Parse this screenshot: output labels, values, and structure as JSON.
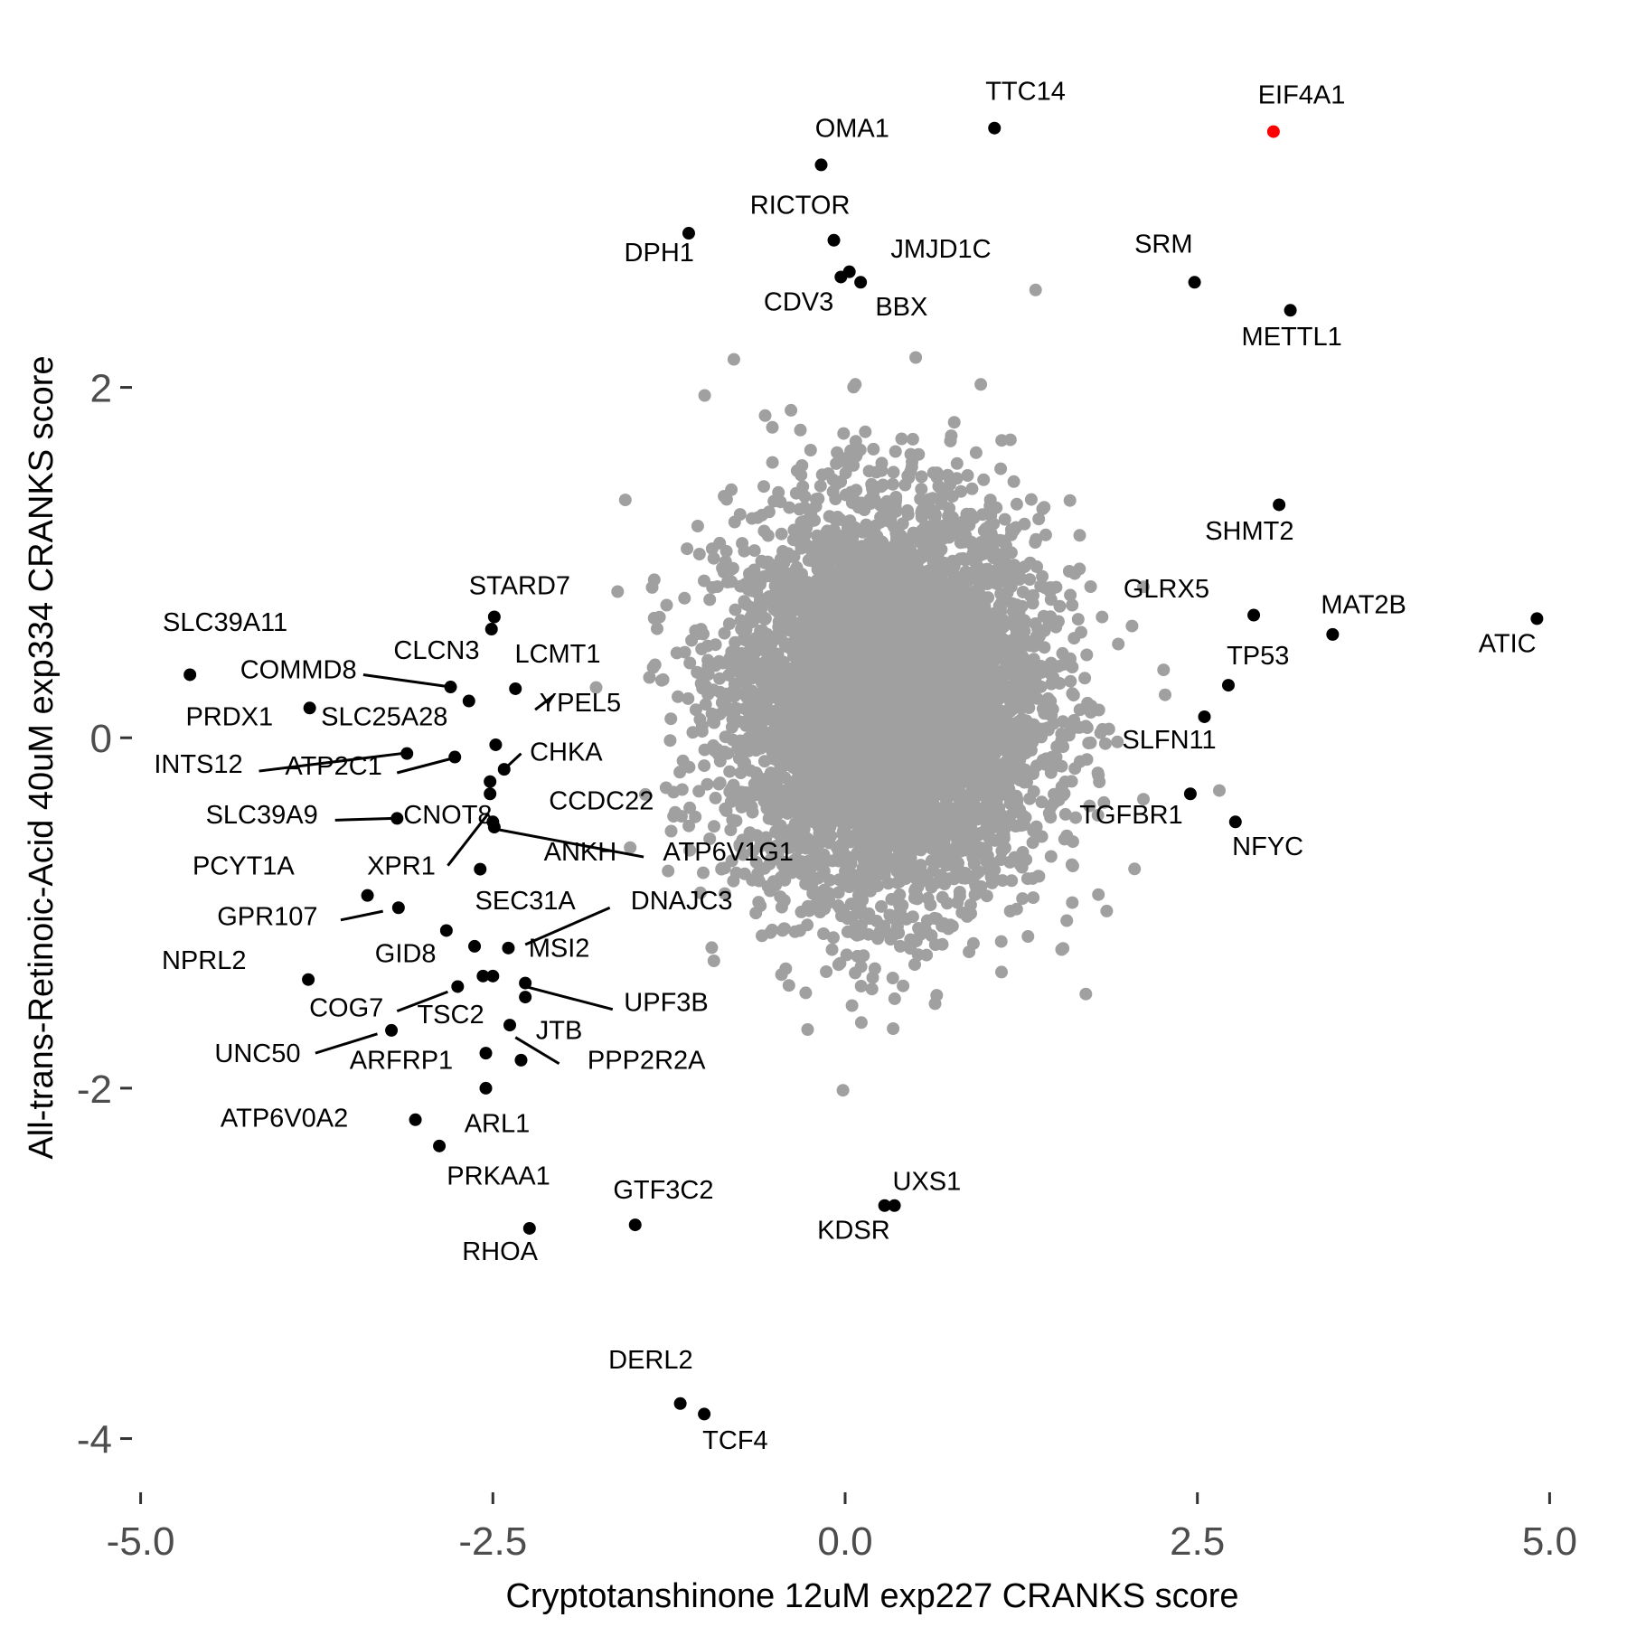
{
  "chart_data": {
    "type": "scatter",
    "title": "",
    "xlabel": "Cryptotanshinone 12uM exp227 CRANKS score",
    "ylabel": "All-trans-Retinoic-Acid 40uM exp334 CRANKS score",
    "xlim": [
      -5.1,
      5.1
    ],
    "ylim": [
      -4.25,
      3.85
    ],
    "x_ticks": [
      -5.0,
      -2.5,
      0.0,
      2.5,
      5.0
    ],
    "x_tick_labels": [
      "-5.0",
      "-2.5",
      "0.0",
      "2.5",
      "5.0"
    ],
    "y_ticks": [
      -4,
      -2,
      0,
      2
    ],
    "y_tick_labels": [
      "-4",
      "-2",
      "0",
      "2"
    ],
    "grid": false,
    "legend": "none",
    "colors": {
      "background_points": "#a0a0a0",
      "highlight_points": "#000000",
      "focus_point": "#ff0000"
    },
    "background_cloud": {
      "color": "#a0a0a0",
      "center": [
        0.3,
        0.2
      ],
      "sd": [
        0.55,
        0.55
      ],
      "note_count_approx": 6000
    },
    "series": [
      {
        "color": "#000000",
        "points": [
          {
            "label": "TTC14",
            "x": 1.06,
            "y": 3.48
          },
          {
            "label": "OMA1",
            "x": -0.17,
            "y": 3.27
          },
          {
            "label": "RICTOR",
            "x": -0.08,
            "y": 2.84
          },
          {
            "label": "DPH1",
            "x": -1.11,
            "y": 2.88
          },
          {
            "label": "JMJD1C",
            "x": 0.03,
            "y": 2.66
          },
          {
            "label": "CDV3",
            "x": -0.03,
            "y": 2.63
          },
          {
            "label": "BBX",
            "x": 0.11,
            "y": 2.6
          },
          {
            "label": "SRM",
            "x": 2.48,
            "y": 2.6
          },
          {
            "label": "METTL1",
            "x": 3.16,
            "y": 2.44
          },
          {
            "label": "SHMT2",
            "x": 3.08,
            "y": 1.33
          },
          {
            "label": "GLRX5",
            "x": 2.9,
            "y": 0.7
          },
          {
            "label": "MAT2B",
            "x": 3.46,
            "y": 0.59
          },
          {
            "label": "ATIC",
            "x": 4.91,
            "y": 0.68
          },
          {
            "label": "TP53",
            "x": 2.72,
            "y": 0.3
          },
          {
            "label": "SLFN11",
            "x": 2.55,
            "y": 0.12
          },
          {
            "label": "TGFBR1",
            "x": 2.45,
            "y": -0.32
          },
          {
            "label": "NFYC",
            "x": 2.77,
            "y": -0.48
          },
          {
            "label": "STARD7",
            "x": -2.49,
            "y": 0.69
          },
          {
            "label": "STARD7_b",
            "x": -2.51,
            "y": 0.62
          },
          {
            "label": "SLC39A11",
            "x": -4.65,
            "y": 0.36
          },
          {
            "label": "COMMD8",
            "x": -2.8,
            "y": 0.29
          },
          {
            "label": "CLCN3",
            "x": -2.67,
            "y": 0.21
          },
          {
            "label": "LCMT1",
            "x": -2.34,
            "y": 0.28
          },
          {
            "label": "PRDX1",
            "x": -3.8,
            "y": 0.17
          },
          {
            "label": "YPEL5",
            "x": -2.48,
            "y": -0.04
          },
          {
            "label": "SLC25A28",
            "x": -3.11,
            "y": -0.09
          },
          {
            "label": "ATP2C1",
            "x": -2.77,
            "y": -0.11
          },
          {
            "label": "CHKA",
            "x": -2.42,
            "y": -0.18
          },
          {
            "label": "INTS12",
            "x": -2.52,
            "y": -0.25
          },
          {
            "label": "CCDC22",
            "x": -2.52,
            "y": -0.32
          },
          {
            "label": "SLC39A9",
            "x": -3.18,
            "y": -0.46
          },
          {
            "label": "CNOT8",
            "x": -2.5,
            "y": -0.48
          },
          {
            "label": "ANKH",
            "x": -2.49,
            "y": -0.51
          },
          {
            "label": "XPR1",
            "x": -2.59,
            "y": -0.75
          },
          {
            "label": "PCYT1A",
            "x": -3.39,
            "y": -0.9
          },
          {
            "label": "GPR107",
            "x": -3.17,
            "y": -0.97
          },
          {
            "label": "SEC31A",
            "x": -2.83,
            "y": -1.1
          },
          {
            "label": "DNAJC3",
            "x": -2.39,
            "y": -1.2
          },
          {
            "label": "GID8",
            "x": -2.63,
            "y": -1.19
          },
          {
            "label": "MSI2",
            "x": -2.5,
            "y": -1.36
          },
          {
            "label": "NPRL2",
            "x": -3.81,
            "y": -1.38
          },
          {
            "label": "COG7",
            "x": -2.57,
            "y": -1.36
          },
          {
            "label": "TSC2",
            "x": -2.75,
            "y": -1.42
          },
          {
            "label": "UPF3B",
            "x": -2.27,
            "y": -1.4
          },
          {
            "label": "UPF3B_b",
            "x": -2.27,
            "y": -1.48
          },
          {
            "label": "JTB",
            "x": -2.38,
            "y": -1.64
          },
          {
            "label": "UNC50",
            "x": -3.22,
            "y": -1.67
          },
          {
            "label": "ARFRP1",
            "x": -2.55,
            "y": -1.8
          },
          {
            "label": "PPP2R2A",
            "x": -2.3,
            "y": -1.84
          },
          {
            "label": "ARL1",
            "x": -2.55,
            "y": -2.0
          },
          {
            "label": "ATP6V0A2",
            "x": -3.05,
            "y": -2.18
          },
          {
            "label": "PRKAA1",
            "x": -2.88,
            "y": -2.33
          },
          {
            "label": "RHOA",
            "x": -2.24,
            "y": -2.8
          },
          {
            "label": "GTF3C2",
            "x": -1.49,
            "y": -2.78
          },
          {
            "label": "UXS1",
            "x": 0.35,
            "y": -2.67
          },
          {
            "label": "KDSR",
            "x": 0.28,
            "y": -2.67
          },
          {
            "label": "DERL2",
            "x": -1.17,
            "y": -3.8
          },
          {
            "label": "TCF4",
            "x": -1.0,
            "y": -3.86
          }
        ]
      },
      {
        "color": "#ff0000",
        "points": [
          {
            "label": "EIF4A1",
            "x": 3.04,
            "y": 3.46
          }
        ]
      }
    ],
    "labels": [
      {
        "text": "TTC14",
        "x": 1.28,
        "y": 3.64
      },
      {
        "text": "EIF4A1",
        "x": 3.24,
        "y": 3.62
      },
      {
        "text": "OMA1",
        "x": 0.05,
        "y": 3.43
      },
      {
        "text": "RICTOR",
        "x": -0.32,
        "y": 2.99
      },
      {
        "text": "DPH1",
        "x": -1.32,
        "y": 2.72
      },
      {
        "text": "JMJD1C",
        "x": 0.68,
        "y": 2.74
      },
      {
        "text": "SRM",
        "x": 2.26,
        "y": 2.77
      },
      {
        "text": "CDV3",
        "x": -0.33,
        "y": 2.44
      },
      {
        "text": "BBX",
        "x": 0.4,
        "y": 2.41
      },
      {
        "text": "METTL1",
        "x": 3.17,
        "y": 2.24
      },
      {
        "text": "SHMT2",
        "x": 2.87,
        "y": 1.13
      },
      {
        "text": "GLRX5",
        "x": 2.28,
        "y": 0.8
      },
      {
        "text": "MAT2B",
        "x": 3.68,
        "y": 0.71
      },
      {
        "text": "ATIC",
        "x": 4.7,
        "y": 0.49
      },
      {
        "text": "TP53",
        "x": 2.93,
        "y": 0.42
      },
      {
        "text": "SLFN11",
        "x": 2.3,
        "y": -0.06
      },
      {
        "text": "TGFBR1",
        "x": 2.03,
        "y": -0.49
      },
      {
        "text": "NFYC",
        "x": 3.0,
        "y": -0.67
      },
      {
        "text": "STARD7",
        "x": -2.31,
        "y": 0.82
      },
      {
        "text": "SLC39A11",
        "x": -4.4,
        "y": 0.61
      },
      {
        "text": "CLCN3",
        "x": -2.9,
        "y": 0.45
      },
      {
        "text": "LCMT1",
        "x": -2.04,
        "y": 0.43
      },
      {
        "text": "COMMD8",
        "x": -3.88,
        "y": 0.34
      },
      {
        "text": "YPEL5",
        "x": -1.88,
        "y": 0.15
      },
      {
        "text": "PRDX1",
        "x": -4.37,
        "y": 0.07
      },
      {
        "text": "SLC25A28",
        "x": -3.27,
        "y": 0.07
      },
      {
        "text": "CHKA",
        "x": -1.98,
        "y": -0.13
      },
      {
        "text": "INTS12",
        "x": -4.59,
        "y": -0.2
      },
      {
        "text": "ATP2C1",
        "x": -3.63,
        "y": -0.21
      },
      {
        "text": "CCDC22",
        "x": -1.73,
        "y": -0.41
      },
      {
        "text": "SLC39A9",
        "x": -4.14,
        "y": -0.49
      },
      {
        "text": "CNOT8",
        "x": -2.82,
        "y": -0.49
      },
      {
        "text": "ANKH",
        "x": -1.88,
        "y": -0.7
      },
      {
        "text": "ATP6V1G1",
        "x": -0.83,
        "y": -0.7
      },
      {
        "text": "PCYT1A",
        "x": -4.27,
        "y": -0.78
      },
      {
        "text": "XPR1",
        "x": -3.15,
        "y": -0.78
      },
      {
        "text": "SEC31A",
        "x": -2.27,
        "y": -0.98
      },
      {
        "text": "DNAJC3",
        "x": -1.16,
        "y": -0.98
      },
      {
        "text": "GPR107",
        "x": -4.1,
        "y": -1.07
      },
      {
        "text": "MSI2",
        "x": -2.03,
        "y": -1.25
      },
      {
        "text": "GID8",
        "x": -3.12,
        "y": -1.28
      },
      {
        "text": "NPRL2",
        "x": -4.55,
        "y": -1.32
      },
      {
        "text": "UPF3B",
        "x": -1.27,
        "y": -1.56
      },
      {
        "text": "COG7",
        "x": -3.54,
        "y": -1.59
      },
      {
        "text": "TSC2",
        "x": -2.8,
        "y": -1.63
      },
      {
        "text": "JTB",
        "x": -2.03,
        "y": -1.72
      },
      {
        "text": "UNC50",
        "x": -4.17,
        "y": -1.85
      },
      {
        "text": "ARFRP1",
        "x": -3.15,
        "y": -1.89
      },
      {
        "text": "PPP2R2A",
        "x": -1.41,
        "y": -1.89
      },
      {
        "text": "ATP6V0A2",
        "x": -3.98,
        "y": -2.22
      },
      {
        "text": "ARL1",
        "x": -2.47,
        "y": -2.25
      },
      {
        "text": "PRKAA1",
        "x": -2.46,
        "y": -2.55
      },
      {
        "text": "UXS1",
        "x": 0.58,
        "y": -2.58
      },
      {
        "text": "GTF3C2",
        "x": -1.29,
        "y": -2.63
      },
      {
        "text": "RHOA",
        "x": -2.45,
        "y": -2.98
      },
      {
        "text": "KDSR",
        "x": 0.06,
        "y": -2.86
      },
      {
        "text": "DERL2",
        "x": -1.38,
        "y": -3.6
      },
      {
        "text": "TCF4",
        "x": -0.78,
        "y": -4.06
      }
    ],
    "leader_lines": [
      {
        "from": [
          -3.42,
          0.36
        ],
        "to": [
          -2.8,
          0.29
        ]
      },
      {
        "from": [
          -4.16,
          -0.19
        ],
        "to": [
          -3.15,
          -0.09
        ]
      },
      {
        "from": [
          -3.18,
          -0.2
        ],
        "to": [
          -2.8,
          -0.12
        ]
      },
      {
        "from": [
          -2.42,
          -0.18
        ],
        "to": [
          -2.3,
          -0.09
        ]
      },
      {
        "from": [
          -2.2,
          0.16
        ],
        "to": [
          -2.07,
          0.24
        ]
      },
      {
        "from": [
          -3.62,
          -0.47
        ],
        "to": [
          -3.2,
          -0.46
        ]
      },
      {
        "from": [
          -2.49,
          -0.52
        ],
        "to": [
          -1.43,
          -0.68
        ]
      },
      {
        "from": [
          -2.82,
          -0.73
        ],
        "to": [
          -2.53,
          -0.43
        ]
      },
      {
        "from": [
          -3.58,
          -1.04
        ],
        "to": [
          -3.28,
          -0.99
        ]
      },
      {
        "from": [
          -2.27,
          -1.18
        ],
        "to": [
          -1.67,
          -0.97
        ]
      },
      {
        "from": [
          -3.18,
          -1.56
        ],
        "to": [
          -2.82,
          -1.45
        ]
      },
      {
        "from": [
          -2.27,
          -1.42
        ],
        "to": [
          -1.65,
          -1.55
        ]
      },
      {
        "from": [
          -3.76,
          -1.8
        ],
        "to": [
          -3.32,
          -1.69
        ]
      },
      {
        "from": [
          -2.34,
          -1.71
        ],
        "to": [
          -2.03,
          -1.86
        ]
      }
    ]
  }
}
